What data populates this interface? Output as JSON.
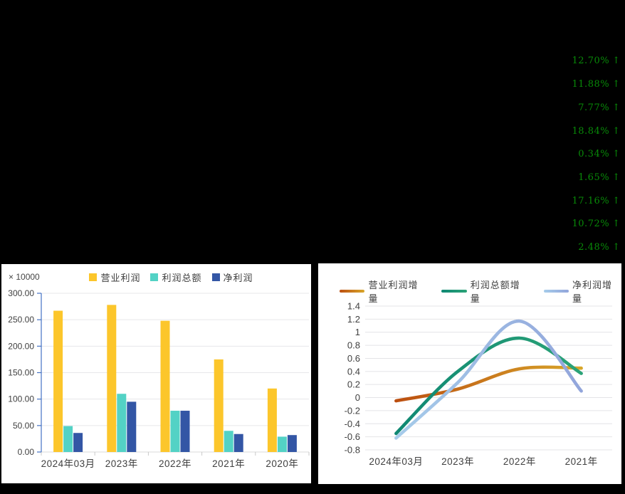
{
  "page": {
    "background": "#000000"
  },
  "top_panel": {
    "arrow_glyph": "↑",
    "text_color": "#088A08",
    "changes": [
      {
        "value": "12.70%",
        "direction": "up"
      },
      {
        "value": "11.88%",
        "direction": "up"
      },
      {
        "value": "7.77%",
        "direction": "up"
      },
      {
        "value": "18.84%",
        "direction": "up"
      },
      {
        "value": "0.34%",
        "direction": "up"
      },
      {
        "value": "1.65%",
        "direction": "up"
      },
      {
        "value": "17.16%",
        "direction": "up"
      },
      {
        "value": "10.72%",
        "direction": "up"
      },
      {
        "value": "2.48%",
        "direction": "up"
      }
    ]
  },
  "chart_data": [
    {
      "type": "bar",
      "panel": "bottom-left",
      "unit_label": "× 10000",
      "categories": [
        "2024年03月",
        "2023年",
        "2022年",
        "2021年",
        "2020年"
      ],
      "series": [
        {
          "name": "营业利润",
          "color": "#FCC62B",
          "values": [
            267,
            278,
            248,
            175,
            120
          ]
        },
        {
          "name": "利润总额",
          "color": "#53D2C5",
          "values": [
            49,
            110,
            78,
            40,
            29
          ]
        },
        {
          "name": "净利润",
          "color": "#3356A5",
          "values": [
            36,
            95,
            78,
            34,
            32
          ]
        }
      ],
      "ylim": [
        0,
        300
      ],
      "ytick_step": 50,
      "tick_decimals": 2,
      "grid": true,
      "legend_position": "top",
      "axis_color": "#4472C4",
      "grid_color": "#E7E7EA",
      "baseline_color": "#D9D9D9"
    },
    {
      "type": "line",
      "panel": "bottom-right",
      "categories": [
        "2024年03月",
        "2023年",
        "2022年",
        "2021年"
      ],
      "series": [
        {
          "name": "营业利润增量",
          "color_start": "#BC4F10",
          "color_end": "#D8A62A",
          "values": [
            -0.05,
            0.13,
            0.44,
            0.45
          ]
        },
        {
          "name": "利润总额增量",
          "color_start": "#0F8873",
          "color_end": "#2BA377",
          "values": [
            -0.55,
            0.4,
            0.91,
            0.37
          ]
        },
        {
          "name": "净利润增量",
          "color_start": "#A6CCEA",
          "color_end": "#92A5DB",
          "values": [
            -0.62,
            0.23,
            1.17,
            0.1
          ]
        }
      ],
      "ylim": [
        -0.8,
        1.4
      ],
      "ytick_step": 0.2,
      "smooth": true,
      "grid": true,
      "legend_position": "top",
      "grid_color": "#E4E4E7"
    }
  ]
}
